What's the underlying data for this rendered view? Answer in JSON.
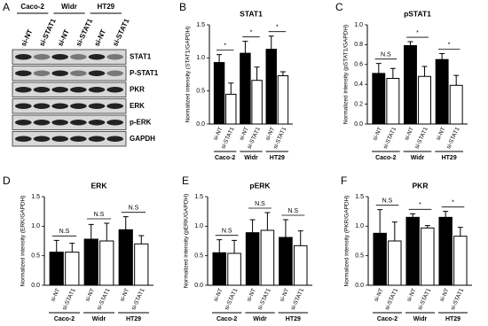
{
  "blot": {
    "label": "A",
    "groups": [
      "Caco-2",
      "Widr",
      "HT29"
    ],
    "lanes": [
      "si-NT",
      "si-STAT1",
      "si-NT",
      "si-STAT1",
      "si-NT",
      "si-STAT1"
    ],
    "rows": [
      "STAT1",
      "P-STAT1",
      "PKR",
      "ERK",
      "p-ERK",
      "GAPDH"
    ]
  },
  "chart_data": [
    {
      "type": "bar",
      "label": "B",
      "title": "STAT1",
      "ylabel": "Normalized intensity (STAT1/GAPDH)",
      "categories": [
        "si-NT",
        "si-STAT1",
        "si-NT",
        "si-STAT1",
        "si-NT",
        "si-STAT1"
      ],
      "groups": [
        "Caco-2",
        "Widr",
        "HT29"
      ],
      "values": [
        0.93,
        0.45,
        1.07,
        0.66,
        1.13,
        0.73
      ],
      "errors": [
        0.12,
        0.17,
        0.18,
        0.2,
        0.2,
        0.06
      ],
      "colors": [
        "#000000",
        "#ffffff",
        "#000000",
        "#ffffff",
        "#000000",
        "#ffffff"
      ],
      "annotations": [
        "*",
        "*",
        "*"
      ],
      "ylim": [
        0,
        1.5
      ],
      "yticks": [
        {
          "value": 0,
          "label": "0.0"
        },
        {
          "value": 0.5,
          "label": "0.5"
        },
        {
          "value": 1,
          "label": "1.0"
        },
        {
          "value": 1.5,
          "label": "1.5"
        }
      ]
    },
    {
      "type": "bar",
      "label": "C",
      "title": "pSTAT1",
      "ylabel": "Normalized intensity (pSTAT1/GAPDH)",
      "categories": [
        "si-NT",
        "si-STAT1",
        "si-NT",
        "si-STAT1",
        "si-NT",
        "si-STAT1"
      ],
      "groups": [
        "Caco-2",
        "Widr",
        "HT29"
      ],
      "values": [
        0.51,
        0.46,
        0.79,
        0.48,
        0.65,
        0.39
      ],
      "errors": [
        0.1,
        0.1,
        0.04,
        0.1,
        0.06,
        0.1
      ],
      "colors": [
        "#000000",
        "#ffffff",
        "#000000",
        "#ffffff",
        "#000000",
        "#ffffff"
      ],
      "annotations": [
        "N.S",
        "*",
        "*"
      ],
      "ylim": [
        0,
        1
      ],
      "yticks": [
        {
          "value": 0,
          "label": "0.0"
        },
        0.2,
        0.4,
        0.6,
        0.8,
        {
          "value": 1,
          "label": "1.0"
        }
      ]
    },
    {
      "type": "bar",
      "label": "D",
      "title": "ERK",
      "ylabel": "Normalized intensity (ERK/GAPDH)",
      "categories": [
        "si-NT",
        "si-STAT1",
        "si-NT",
        "si-STAT1",
        "si-NT",
        "si-STAT1"
      ],
      "groups": [
        "Caco-2",
        "Widr",
        "HT29"
      ],
      "values": [
        0.56,
        0.56,
        0.78,
        0.75,
        0.94,
        0.7
      ],
      "errors": [
        0.2,
        0.15,
        0.25,
        0.3,
        0.22,
        0.14
      ],
      "colors": [
        "#000000",
        "#ffffff",
        "#000000",
        "#ffffff",
        "#000000",
        "#ffffff"
      ],
      "annotations": [
        "N.S",
        "N.S",
        "N.S"
      ],
      "ylim": [
        0,
        1.5
      ],
      "yticks": [
        {
          "value": 0,
          "label": "0.0"
        },
        {
          "value": 0.5,
          "label": "0.5"
        },
        {
          "value": 1,
          "label": "1.0"
        },
        {
          "value": 1.5,
          "label": "1.5"
        }
      ]
    },
    {
      "type": "bar",
      "label": "E",
      "title": "pERK",
      "ylabel": "Normalized intensity (pERK/GAPDH)",
      "categories": [
        "si-NT",
        "si-STAT1",
        "si-NT",
        "si-STAT1",
        "si-NT",
        "si-STAT1"
      ],
      "groups": [
        "Caco-2",
        "Widr",
        "HT29"
      ],
      "values": [
        0.55,
        0.54,
        0.89,
        0.93,
        0.81,
        0.67
      ],
      "errors": [
        0.22,
        0.22,
        0.22,
        0.3,
        0.3,
        0.25
      ],
      "colors": [
        "#000000",
        "#ffffff",
        "#000000",
        "#ffffff",
        "#000000",
        "#ffffff"
      ],
      "annotations": [
        "N.S",
        "N.S",
        "N.S"
      ],
      "ylim": [
        0,
        1.5
      ],
      "yticks": [
        {
          "value": 0,
          "label": "0.0"
        },
        {
          "value": 0.5,
          "label": "0.5"
        },
        {
          "value": 1,
          "label": "1.0"
        },
        {
          "value": 1.5,
          "label": "1.5"
        }
      ]
    },
    {
      "type": "bar",
      "label": "F",
      "title": "PKR",
      "ylabel": "Normalized intensity (PKR/GAPDH)",
      "categories": [
        "si-NT",
        "si-STAT1",
        "si-NT",
        "si-STAT1",
        "si-NT",
        "si-STAT1"
      ],
      "groups": [
        "Caco-2",
        "Widr",
        "HT29"
      ],
      "values": [
        0.88,
        0.75,
        1.15,
        0.97,
        1.15,
        0.83
      ],
      "errors": [
        0.4,
        0.32,
        0.06,
        0.04,
        0.1,
        0.15
      ],
      "colors": [
        "#000000",
        "#ffffff",
        "#000000",
        "#ffffff",
        "#000000",
        "#ffffff"
      ],
      "annotations": [
        "N.S",
        "*",
        "*"
      ],
      "ylim": [
        0,
        1.5
      ],
      "yticks": [
        {
          "value": 0,
          "label": "0.0"
        },
        {
          "value": 0.5,
          "label": "0.5"
        },
        {
          "value": 1,
          "label": "1.0"
        },
        {
          "value": 1.5,
          "label": "1.5"
        }
      ]
    }
  ]
}
